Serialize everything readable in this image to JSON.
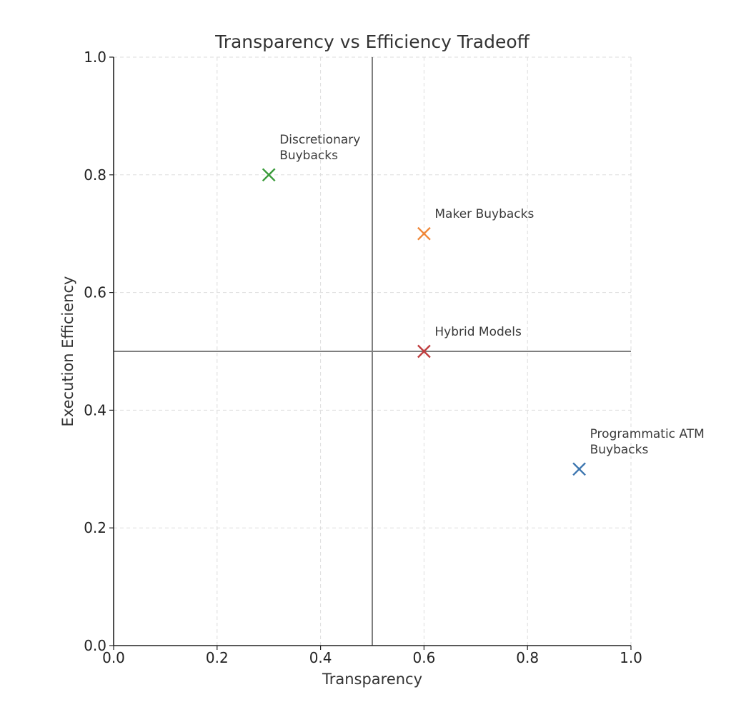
{
  "chart_data": {
    "type": "scatter",
    "title": "Transparency vs Efficiency Tradeoff",
    "xlabel": "Transparency",
    "ylabel": "Execution Efficiency",
    "xlim": [
      0,
      1
    ],
    "ylim": [
      0,
      1
    ],
    "xticks": [
      "0.0",
      "0.2",
      "0.4",
      "0.6",
      "0.8",
      "1.0"
    ],
    "yticks": [
      "0.0",
      "0.2",
      "0.4",
      "0.6",
      "0.8",
      "1.0"
    ],
    "grid": true,
    "reference_lines": {
      "x": 0.5,
      "y": 0.5
    },
    "marker": "x",
    "points": [
      {
        "label": [
          "Programmatic ATM",
          "Buybacks"
        ],
        "x": 0.9,
        "y": 0.3,
        "color": "#3b75af"
      },
      {
        "label": [
          "Discretionary",
          "Buybacks"
        ],
        "x": 0.3,
        "y": 0.8,
        "color": "#3a9b3a"
      },
      {
        "label": [
          "Maker Buybacks"
        ],
        "x": 0.6,
        "y": 0.7,
        "color": "#ef8636"
      },
      {
        "label": [
          "Hybrid Models"
        ],
        "x": 0.6,
        "y": 0.5,
        "color": "#c03d3e"
      }
    ]
  }
}
